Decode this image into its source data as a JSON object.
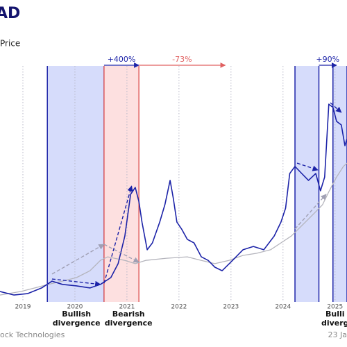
{
  "chart_data": {
    "type": "line",
    "title": "AD",
    "legend_text": "Price",
    "footer_left": "ock Technologies",
    "footer_right": "23 Ja",
    "xlim": [
      2018.56,
      2025.23
    ],
    "ylim": [
      0,
      100
    ],
    "xticks": [
      2019,
      2020,
      2021,
      2022,
      2023,
      2024,
      2025
    ],
    "grid": true,
    "series": [
      {
        "color": "#1c23a8",
        "x": [
          2018.56,
          2018.83,
          2019.09,
          2019.36,
          2019.56,
          2019.76,
          2020.03,
          2020.29,
          2020.49,
          2020.69,
          2020.83,
          2020.96,
          2021.07,
          2021.16,
          2021.23,
          2021.29,
          2021.39,
          2021.49,
          2021.63,
          2021.73,
          2021.83,
          2021.89,
          2021.96,
          2022.05,
          2022.16,
          2022.29,
          2022.43,
          2022.56,
          2022.69,
          2022.83,
          2023.03,
          2023.23,
          2023.43,
          2023.63,
          2023.83,
          2023.96,
          2024.05,
          2024.13,
          2024.23,
          2024.36,
          2024.49,
          2024.63,
          2024.72,
          2024.8,
          2024.88,
          2024.96,
          2025.03,
          2025.12,
          2025.19,
          2025.23
        ],
        "values": [
          4.4,
          2.9,
          3.5,
          5.9,
          8.8,
          7.4,
          6.8,
          5.9,
          7.4,
          10.3,
          16.2,
          27.9,
          45.6,
          48.5,
          42.6,
          33.8,
          22.1,
          25,
          33.8,
          41.2,
          51.5,
          44.1,
          33.8,
          30.9,
          26.5,
          25,
          19.1,
          17.6,
          14.7,
          13.2,
          17.6,
          22.1,
          23.5,
          22.1,
          27.9,
          33.8,
          39.7,
          54.4,
          57.4,
          54.4,
          51.5,
          54.4,
          47.1,
          52.9,
          83.8,
          82.4,
          76.5,
          75,
          66.2,
          69.1
        ]
      },
      {
        "color": "#b4b4bc",
        "x": [
          2018.56,
          2018.96,
          2019.23,
          2019.49,
          2019.76,
          2020.03,
          2020.29,
          2020.49,
          2020.63,
          2020.76,
          2020.96,
          2021.16,
          2021.36,
          2021.76,
          2022.16,
          2022.43,
          2022.69,
          2022.96,
          2023.23,
          2023.49,
          2023.76,
          2023.96,
          2024.16,
          2024.43,
          2024.63,
          2024.76,
          2024.89,
          2025.03,
          2025.16,
          2025.23
        ],
        "values": [
          2.9,
          4.4,
          5.9,
          7.4,
          8.8,
          10.3,
          13.2,
          17.6,
          19.1,
          18.5,
          17.6,
          16.2,
          17.6,
          18.5,
          19.1,
          17.6,
          16.2,
          17.6,
          19.7,
          20.6,
          22.1,
          25,
          27.9,
          33.8,
          38.2,
          41.2,
          47.1,
          52.9,
          57.4,
          58.8
        ]
      }
    ],
    "shaded_regions": [
      {
        "x0": 2019.47,
        "x1": 2020.56,
        "color": "#d6dcfb",
        "edge": "#1c23a8"
      },
      {
        "x0": 2020.56,
        "x1": 2021.23,
        "color": "#fde0e0",
        "edge": "#e06060"
      },
      {
        "x0": 2024.23,
        "x1": 2024.69,
        "color": "#d6dcfb",
        "edge": "#1c23a8"
      },
      {
        "x0": 2024.96,
        "x1": 2025.23,
        "color": "#d6dcfb",
        "edge": "#1c23a8"
      }
    ],
    "annotations": [
      {
        "text": "+400%",
        "x0": 2020.56,
        "x1": 2021.23,
        "color": "#1c23a8"
      },
      {
        "text": "-73%",
        "x0": 2021.23,
        "x1": 2022.89,
        "color": "#e06060"
      },
      {
        "text": "+90%",
        "x0": 2024.69,
        "x1": 2025.03,
        "color": "#1c23a8"
      }
    ],
    "trend_arrows": [
      {
        "color": "#1c23a8",
        "x": [
          2019.56,
          2020.49
        ],
        "y": [
          9.7,
          7.4
        ]
      },
      {
        "color": "#1c23a8",
        "x": [
          2020.56,
          2021.09
        ],
        "y": [
          7.9,
          49.1
        ]
      },
      {
        "color": "#a0a0b4",
        "x": [
          2019.56,
          2020.56
        ],
        "y": [
          11.8,
          24.4
        ]
      },
      {
        "color": "#a0a0b4",
        "x": [
          2020.56,
          2021.23
        ],
        "y": [
          24.4,
          16.8
        ]
      },
      {
        "color": "#1c23a8",
        "x": [
          2024.27,
          2024.67
        ],
        "y": [
          58.8,
          55.9
        ]
      },
      {
        "color": "#1c23a8",
        "x": [
          2024.91,
          2025.12
        ],
        "y": [
          84.4,
          80.3
        ]
      },
      {
        "color": "#a0a0b4",
        "x": [
          2024.23,
          2024.83
        ],
        "y": [
          30.9,
          45.6
        ]
      }
    ],
    "divergence_labels": [
      {
        "x": 2020.03,
        "lines": [
          "Bullish",
          "divergence"
        ]
      },
      {
        "x": 2021.03,
        "lines": [
          "Bearish",
          "divergence"
        ]
      },
      {
        "x": 2025.0,
        "lines": [
          "Bulli",
          "diverg"
        ]
      }
    ]
  }
}
